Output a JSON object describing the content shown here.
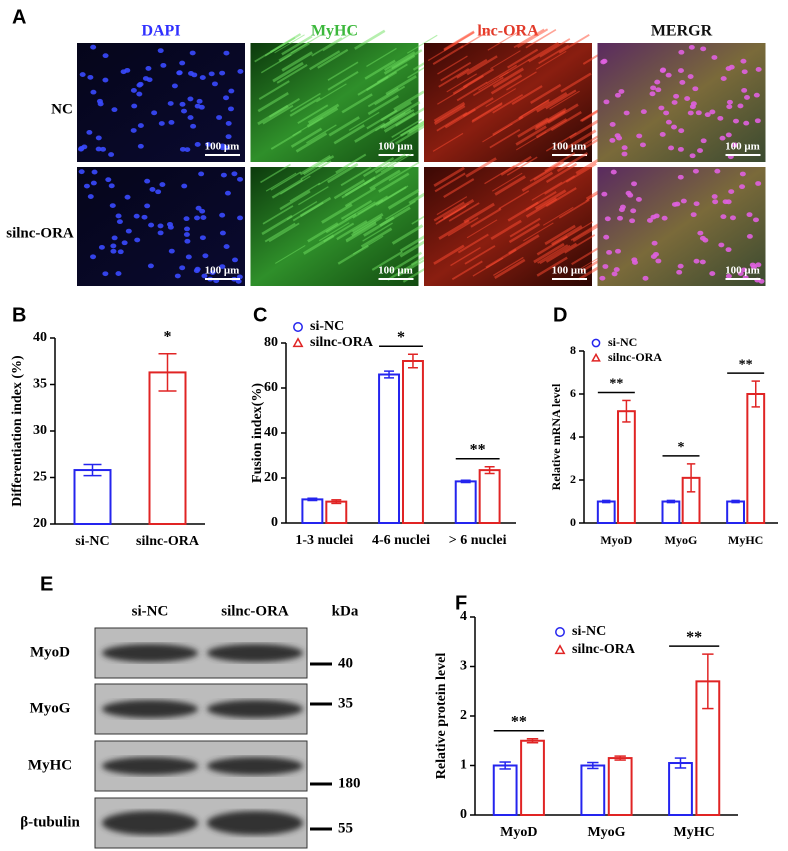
{
  "panel_labels": [
    "A",
    "B",
    "C",
    "D",
    "E",
    "F"
  ],
  "figure_a": {
    "columns": [
      "DAPI",
      "MyHC",
      "lnc-ORA",
      "MERGR"
    ],
    "rows": [
      "NC",
      "silnc-ORA"
    ],
    "scale_bar": "100 μm"
  },
  "figure_e": {
    "lanes": [
      "si-NC",
      "silnc-ORA"
    ],
    "unit": "kDa",
    "blots": [
      {
        "name": "MyoD",
        "marker": 40
      },
      {
        "name": "MyoG",
        "marker": 35
      },
      {
        "name": "MyHC",
        "marker": 180
      },
      {
        "name": "β-tubulin",
        "marker": 55
      }
    ]
  },
  "chart_data": [
    {
      "type": "bar",
      "ylabel": "Differentiation index (%)",
      "categories": [
        "si-NC",
        "silnc-ORA"
      ],
      "values": [
        25.8,
        36.3
      ],
      "errors": [
        0.6,
        2.0
      ],
      "colors": [
        "#2424ee",
        "#e02424"
      ],
      "significance": [
        null,
        "*"
      ],
      "ylim": [
        20,
        40
      ],
      "yticks": [
        20,
        25,
        30,
        35,
        40
      ]
    },
    {
      "type": "bar",
      "ylabel": "Fusion index(%)",
      "categories": [
        "1-3 nuclei",
        "4-6 nuclei",
        "> 6 nuclei"
      ],
      "series": [
        {
          "name": "si-NC",
          "color": "#2424ee",
          "marker": "circle",
          "values": [
            10.5,
            66,
            18.5
          ],
          "errors": [
            0.5,
            1.5,
            0.5
          ]
        },
        {
          "name": "silnc-ORA",
          "color": "#e02424",
          "marker": "triangle",
          "values": [
            9.5,
            72,
            23.5
          ],
          "errors": [
            0.8,
            3,
            1.5
          ]
        }
      ],
      "significance": [
        null,
        "*",
        "**"
      ],
      "ylim": [
        0,
        80
      ],
      "yticks": [
        0,
        20,
        40,
        60,
        80
      ]
    },
    {
      "type": "bar",
      "ylabel": "Relative mRNA level",
      "categories": [
        "MyoD",
        "MyoG",
        "MyHC"
      ],
      "series": [
        {
          "name": "si-NC",
          "color": "#2424ee",
          "marker": "circle",
          "values": [
            1.0,
            1.0,
            1.0
          ],
          "errors": [
            0.05,
            0.05,
            0.05
          ]
        },
        {
          "name": "silnc-ORA",
          "color": "#e02424",
          "marker": "triangle",
          "values": [
            5.2,
            2.1,
            6.0
          ],
          "errors": [
            0.5,
            0.65,
            0.6
          ]
        }
      ],
      "significance": [
        "**",
        "*",
        "**"
      ],
      "ylim": [
        0,
        8
      ],
      "yticks": [
        0,
        2,
        4,
        6,
        8
      ]
    },
    {
      "type": "bar",
      "ylabel": "Relative protein level",
      "categories": [
        "MyoD",
        "MyoG",
        "MyHC"
      ],
      "series": [
        {
          "name": "si-NC",
          "color": "#2424ee",
          "marker": "circle",
          "values": [
            1.0,
            1.0,
            1.05
          ],
          "errors": [
            0.07,
            0.06,
            0.1
          ]
        },
        {
          "name": "silnc-ORA",
          "color": "#e02424",
          "marker": "triangle",
          "values": [
            1.5,
            1.15,
            2.7
          ],
          "errors": [
            0.04,
            0.04,
            0.55
          ]
        }
      ],
      "significance": [
        "**",
        null,
        "**"
      ],
      "ylim": [
        0,
        4
      ],
      "yticks": [
        0,
        1,
        2,
        3,
        4
      ]
    }
  ]
}
